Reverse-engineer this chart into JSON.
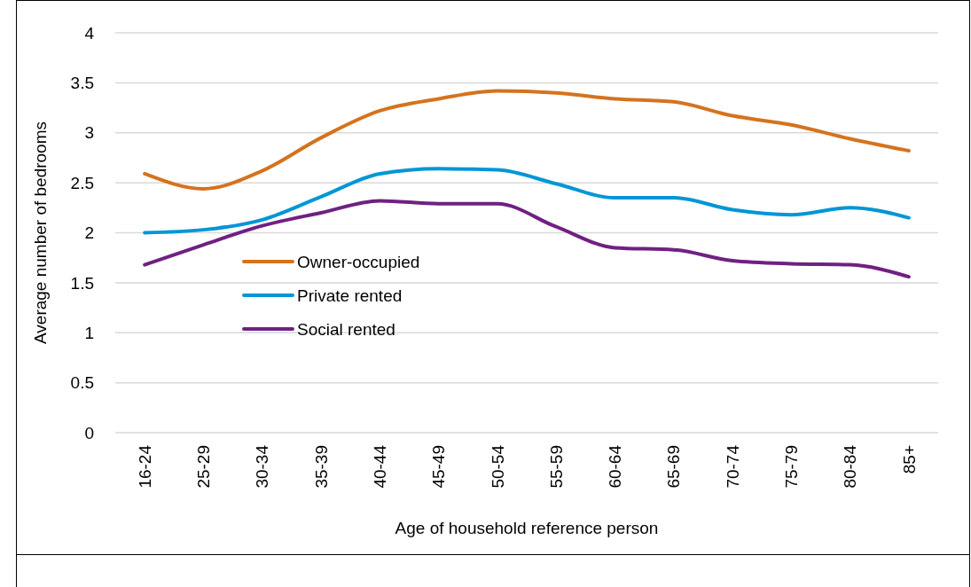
{
  "chart_data": {
    "type": "line",
    "xlabel": "Age of household reference person",
    "ylabel": "Average number of bedrooms",
    "categories": [
      "16-24",
      "25-29",
      "30-34",
      "35-39",
      "40-44",
      "45-49",
      "50-54",
      "55-59",
      "60-64",
      "65-69",
      "70-74",
      "75-79",
      "80-84",
      "85+"
    ],
    "series": [
      {
        "name": "Owner-occupied",
        "color": "#d4731f",
        "values": [
          2.59,
          2.44,
          2.62,
          2.95,
          3.22,
          3.34,
          3.42,
          3.4,
          3.34,
          3.31,
          3.17,
          3.08,
          2.94,
          2.82
        ]
      },
      {
        "name": "Private rented",
        "color": "#0096d6",
        "values": [
          2.0,
          2.03,
          2.13,
          2.36,
          2.59,
          2.64,
          2.63,
          2.49,
          2.35,
          2.35,
          2.23,
          2.18,
          2.25,
          2.15
        ]
      },
      {
        "name": "Social rented",
        "color": "#702082",
        "values": [
          1.68,
          1.88,
          2.07,
          2.2,
          2.32,
          2.29,
          2.29,
          2.06,
          1.85,
          1.83,
          1.72,
          1.69,
          1.68,
          1.56
        ]
      }
    ],
    "ylim": [
      0,
      4
    ],
    "yticks": [
      0,
      0.5,
      1,
      1.5,
      2,
      2.5,
      3,
      3.5,
      4
    ],
    "grid": "y",
    "legend": "left",
    "marker": "none",
    "line_style": "solid"
  }
}
